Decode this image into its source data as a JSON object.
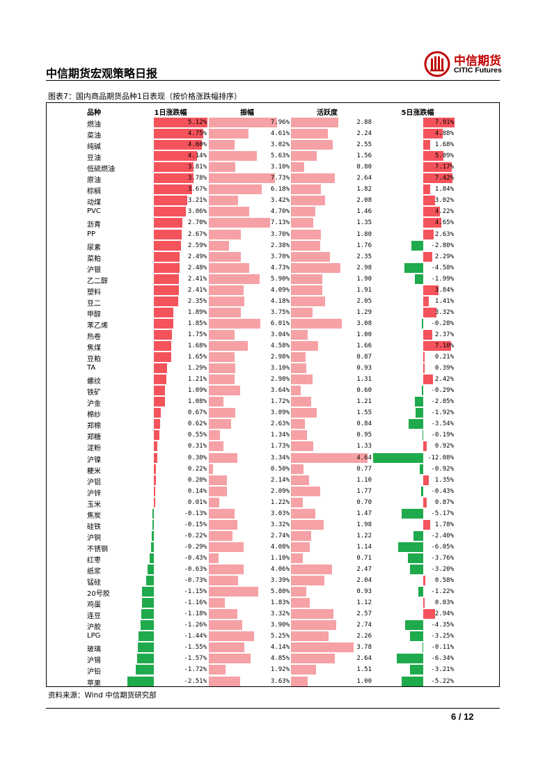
{
  "header": {
    "title": "中信期货宏观策略日报",
    "brand_cn": "中信期货",
    "brand_en": "CITIC Futures"
  },
  "figure_title": "图表7：国内商品期货品种1日表现（按价格涨跌幅排序）",
  "source": "资料来源：Wind 中信期货研究部",
  "page_number": "6 / 12",
  "colors": {
    "up": "#f4535b",
    "down": "#1faa4c",
    "light": "#f6a1a5",
    "brand": "#c00000"
  },
  "chart_data": {
    "type": "table",
    "columns": [
      "品种",
      "1日涨跌幅",
      "振幅",
      "活跃度",
      "5日涨跌幅"
    ],
    "rows": [
      {
        "name": "燃油",
        "d1": 5.12,
        "d1_t": "5.12%",
        "amp": 7.96,
        "amp_t": "7.96%",
        "act": 2.88,
        "act_t": "2.88",
        "d5": 7.91,
        "d5_t": "7.91%"
      },
      {
        "name": "菜油",
        "d1": 4.75,
        "d1_t": "4.75%",
        "amp": 4.61,
        "amp_t": "4.61%",
        "act": 2.24,
        "act_t": "2.24",
        "d5": 4.88,
        "d5_t": "4.88%"
      },
      {
        "name": "纯碱",
        "d1": 4.6,
        "d1_t": "4.60%",
        "amp": 3.02,
        "amp_t": "3.02%",
        "act": 2.55,
        "act_t": "2.55",
        "d5": 1.68,
        "d5_t": "1.68%"
      },
      {
        "name": "豆油",
        "d1": 4.14,
        "d1_t": "4.14%",
        "amp": 5.63,
        "amp_t": "5.63%",
        "act": 1.56,
        "act_t": "1.56",
        "d5": 5.09,
        "d5_t": "5.09%"
      },
      {
        "name": "低硫燃油",
        "d1": 3.81,
        "d1_t": "3.81%",
        "amp": 3.1,
        "amp_t": "3.10%",
        "act": 0.8,
        "act_t": "0.80",
        "d5": 7.17,
        "d5_t": "7.17%"
      },
      {
        "name": "原油",
        "d1": 3.78,
        "d1_t": "3.78%",
        "amp": 7.73,
        "amp_t": "7.73%",
        "act": 2.64,
        "act_t": "2.64",
        "d5": 7.42,
        "d5_t": "7.42%"
      },
      {
        "name": "棕榈",
        "d1": 3.67,
        "d1_t": "3.67%",
        "amp": 6.18,
        "amp_t": "6.18%",
        "act": 1.82,
        "act_t": "1.82",
        "d5": 1.84,
        "d5_t": "1.84%"
      },
      {
        "name": "动煤",
        "d1": 3.21,
        "d1_t": "3.21%",
        "amp": 3.42,
        "amp_t": "3.42%",
        "act": 2.08,
        "act_t": "2.08",
        "d5": 3.02,
        "d5_t": "3.02%"
      },
      {
        "name": "PVC",
        "d1": 3.06,
        "d1_t": "3.06%",
        "amp": 4.7,
        "amp_t": "4.70%",
        "act": 1.46,
        "act_t": "1.46",
        "d5": 4.22,
        "d5_t": "4.22%"
      },
      {
        "name": "沥青",
        "d1": 2.7,
        "d1_t": "2.70%",
        "amp": 7.13,
        "amp_t": "7.13%",
        "act": 1.35,
        "act_t": "1.35",
        "d5": 4.65,
        "d5_t": "4.65%"
      },
      {
        "name": "PP",
        "d1": 2.67,
        "d1_t": "2.67%",
        "amp": 3.7,
        "amp_t": "3.70%",
        "act": 1.8,
        "act_t": "1.80",
        "d5": 2.63,
        "d5_t": "2.63%"
      },
      {
        "name": "尿素",
        "d1": 2.59,
        "d1_t": "2.59%",
        "amp": 2.38,
        "amp_t": "2.38%",
        "act": 1.76,
        "act_t": "1.76",
        "d5": -2.8,
        "d5_t": "-2.80%"
      },
      {
        "name": "菜粕",
        "d1": 2.49,
        "d1_t": "2.49%",
        "amp": 3.7,
        "amp_t": "3.70%",
        "act": 2.35,
        "act_t": "2.35",
        "d5": 2.29,
        "d5_t": "2.29%"
      },
      {
        "name": "沪银",
        "d1": 2.48,
        "d1_t": "2.48%",
        "amp": 4.73,
        "amp_t": "4.73%",
        "act": 2.98,
        "act_t": "2.98",
        "d5": -4.58,
        "d5_t": "-4.58%"
      },
      {
        "name": "乙二醇",
        "d1": 2.41,
        "d1_t": "2.41%",
        "amp": 5.9,
        "amp_t": "5.90%",
        "act": 1.9,
        "act_t": "1.90",
        "d5": -1.99,
        "d5_t": "-1.99%"
      },
      {
        "name": "塑料",
        "d1": 2.41,
        "d1_t": "2.41%",
        "amp": 4.09,
        "amp_t": "4.09%",
        "act": 1.91,
        "act_t": "1.91",
        "d5": 3.84,
        "d5_t": "3.84%"
      },
      {
        "name": "豆二",
        "d1": 2.35,
        "d1_t": "2.35%",
        "amp": 4.18,
        "amp_t": "4.18%",
        "act": 2.05,
        "act_t": "2.05",
        "d5": 1.41,
        "d5_t": "1.41%"
      },
      {
        "name": "甲醇",
        "d1": 1.89,
        "d1_t": "1.89%",
        "amp": 3.75,
        "amp_t": "3.75%",
        "act": 1.29,
        "act_t": "1.29",
        "d5": 3.32,
        "d5_t": "3.32%"
      },
      {
        "name": "苯乙烯",
        "d1": 1.85,
        "d1_t": "1.85%",
        "amp": 6.01,
        "amp_t": "6.01%",
        "act": 3.08,
        "act_t": "3.08",
        "d5": -0.28,
        "d5_t": "-0.28%"
      },
      {
        "name": "热卷",
        "d1": 1.75,
        "d1_t": "1.75%",
        "amp": 3.04,
        "amp_t": "3.04%",
        "act": 1.0,
        "act_t": "1.00",
        "d5": 2.37,
        "d5_t": "2.37%"
      },
      {
        "name": "焦煤",
        "d1": 1.68,
        "d1_t": "1.68%",
        "amp": 4.58,
        "amp_t": "4.58%",
        "act": 1.66,
        "act_t": "1.66",
        "d5": 7.1,
        "d5_t": "7.10%"
      },
      {
        "name": "豆粕",
        "d1": 1.65,
        "d1_t": "1.65%",
        "amp": 2.98,
        "amp_t": "2.98%",
        "act": 0.87,
        "act_t": "0.87",
        "d5": 0.21,
        "d5_t": "0.21%"
      },
      {
        "name": "TA",
        "d1": 1.29,
        "d1_t": "1.29%",
        "amp": 3.1,
        "amp_t": "3.10%",
        "act": 0.93,
        "act_t": "0.93",
        "d5": 0.39,
        "d5_t": "0.39%"
      },
      {
        "name": "螺纹",
        "d1": 1.21,
        "d1_t": "1.21%",
        "amp": 2.98,
        "amp_t": "2.98%",
        "act": 1.31,
        "act_t": "1.31",
        "d5": 2.42,
        "d5_t": "2.42%"
      },
      {
        "name": "铁矿",
        "d1": 1.09,
        "d1_t": "1.09%",
        "amp": 3.64,
        "amp_t": "3.64%",
        "act": 0.6,
        "act_t": "0.60",
        "d5": -0.29,
        "d5_t": "-0.29%"
      },
      {
        "name": "沪金",
        "d1": 1.08,
        "d1_t": "1.08%",
        "amp": 1.72,
        "amp_t": "1.72%",
        "act": 1.21,
        "act_t": "1.21",
        "d5": -2.05,
        "d5_t": "-2.05%"
      },
      {
        "name": "棉纱",
        "d1": 0.67,
        "d1_t": "0.67%",
        "amp": 3.09,
        "amp_t": "3.09%",
        "act": 1.55,
        "act_t": "1.55",
        "d5": -1.92,
        "d5_t": "-1.92%"
      },
      {
        "name": "郑棉",
        "d1": 0.62,
        "d1_t": "0.62%",
        "amp": 2.63,
        "amp_t": "2.63%",
        "act": 0.84,
        "act_t": "0.84",
        "d5": -3.54,
        "d5_t": "-3.54%"
      },
      {
        "name": "郑糖",
        "d1": 0.55,
        "d1_t": "0.55%",
        "amp": 1.34,
        "amp_t": "1.34%",
        "act": 0.95,
        "act_t": "0.95",
        "d5": -0.19,
        "d5_t": "-0.19%"
      },
      {
        "name": "淀粉",
        "d1": 0.31,
        "d1_t": "0.31%",
        "amp": 1.73,
        "amp_t": "1.73%",
        "act": 1.33,
        "act_t": "1.33",
        "d5": 0.92,
        "d5_t": "0.92%"
      },
      {
        "name": "沪镍",
        "d1": 0.3,
        "d1_t": "0.30%",
        "amp": 3.34,
        "amp_t": "3.34%",
        "act": 4.64,
        "act_t": "4.64",
        "d5": -12.08,
        "d5_t": "-12.08%"
      },
      {
        "name": "粳米",
        "d1": 0.22,
        "d1_t": "0.22%",
        "amp": 0.5,
        "amp_t": "0.50%",
        "act": 0.77,
        "act_t": "0.77",
        "d5": -0.92,
        "d5_t": "-0.92%"
      },
      {
        "name": "沪铝",
        "d1": 0.2,
        "d1_t": "0.20%",
        "amp": 2.14,
        "amp_t": "2.14%",
        "act": 1.1,
        "act_t": "1.10",
        "d5": 1.35,
        "d5_t": "1.35%"
      },
      {
        "name": "沪锌",
        "d1": 0.14,
        "d1_t": "0.14%",
        "amp": 2.09,
        "amp_t": "2.09%",
        "act": 1.77,
        "act_t": "1.77",
        "d5": -0.43,
        "d5_t": "-0.43%"
      },
      {
        "name": "玉米",
        "d1": 0.01,
        "d1_t": "0.01%",
        "amp": 1.22,
        "amp_t": "1.22%",
        "act": 0.7,
        "act_t": "0.70",
        "d5": 0.87,
        "d5_t": "0.87%"
      },
      {
        "name": "焦炭",
        "d1": -0.13,
        "d1_t": "-0.13%",
        "amp": 3.03,
        "amp_t": "3.03%",
        "act": 1.47,
        "act_t": "1.47",
        "d5": -5.17,
        "d5_t": "-5.17%"
      },
      {
        "name": "硅铁",
        "d1": -0.15,
        "d1_t": "-0.15%",
        "amp": 3.32,
        "amp_t": "3.32%",
        "act": 1.98,
        "act_t": "1.98",
        "d5": 1.78,
        "d5_t": "1.78%"
      },
      {
        "name": "沪铜",
        "d1": -0.22,
        "d1_t": "-0.22%",
        "amp": 2.74,
        "amp_t": "2.74%",
        "act": 1.22,
        "act_t": "1.22",
        "d5": -2.4,
        "d5_t": "-2.40%"
      },
      {
        "name": "不锈钢",
        "d1": -0.29,
        "d1_t": "-0.29%",
        "amp": 4.08,
        "amp_t": "4.08%",
        "act": 1.14,
        "act_t": "1.14",
        "d5": -6.05,
        "d5_t": "-6.05%"
      },
      {
        "name": "红枣",
        "d1": -0.43,
        "d1_t": "-0.43%",
        "amp": 1.1,
        "amp_t": "1.10%",
        "act": 0.71,
        "act_t": "0.71",
        "d5": -3.76,
        "d5_t": "-3.76%"
      },
      {
        "name": "纸浆",
        "d1": -0.63,
        "d1_t": "-0.63%",
        "amp": 4.06,
        "amp_t": "4.06%",
        "act": 2.47,
        "act_t": "2.47",
        "d5": -3.2,
        "d5_t": "-3.20%"
      },
      {
        "name": "锰硅",
        "d1": -0.73,
        "d1_t": "-0.73%",
        "amp": 3.39,
        "amp_t": "3.39%",
        "act": 2.04,
        "act_t": "2.04",
        "d5": 0.58,
        "d5_t": "0.58%"
      },
      {
        "name": "20号胶",
        "d1": -1.15,
        "d1_t": "-1.15%",
        "amp": 5.8,
        "amp_t": "5.80%",
        "act": 0.93,
        "act_t": "0.93",
        "d5": -1.22,
        "d5_t": "-1.22%"
      },
      {
        "name": "鸡蛋",
        "d1": -1.16,
        "d1_t": "-1.16%",
        "amp": 1.83,
        "amp_t": "1.83%",
        "act": 1.12,
        "act_t": "1.12",
        "d5": 0.03,
        "d5_t": "0.03%"
      },
      {
        "name": "连豆",
        "d1": -1.18,
        "d1_t": "-1.18%",
        "amp": 3.32,
        "amp_t": "3.32%",
        "act": 2.57,
        "act_t": "2.57",
        "d5": 2.94,
        "d5_t": "2.94%"
      },
      {
        "name": "沪胶",
        "d1": -1.26,
        "d1_t": "-1.26%",
        "amp": 3.9,
        "amp_t": "3.90%",
        "act": 2.74,
        "act_t": "2.74",
        "d5": -4.35,
        "d5_t": "-4.35%"
      },
      {
        "name": "LPG",
        "d1": -1.44,
        "d1_t": "-1.44%",
        "amp": 5.25,
        "amp_t": "5.25%",
        "act": 2.26,
        "act_t": "2.26",
        "d5": -3.25,
        "d5_t": "-3.25%"
      },
      {
        "name": "玻璃",
        "d1": -1.55,
        "d1_t": "-1.55%",
        "amp": 4.14,
        "amp_t": "4.14%",
        "act": 3.78,
        "act_t": "3.78",
        "d5": -0.11,
        "d5_t": "-0.11%"
      },
      {
        "name": "沪锡",
        "d1": -1.57,
        "d1_t": "-1.57%",
        "amp": 4.85,
        "amp_t": "4.85%",
        "act": 2.64,
        "act_t": "2.64",
        "d5": -6.34,
        "d5_t": "-6.34%"
      },
      {
        "name": "沪铅",
        "d1": -1.72,
        "d1_t": "-1.72%",
        "amp": 1.92,
        "amp_t": "1.92%",
        "act": 1.51,
        "act_t": "1.51",
        "d5": -3.21,
        "d5_t": "-3.21%"
      },
      {
        "name": "苹果",
        "d1": -2.51,
        "d1_t": "-2.51%",
        "amp": 3.63,
        "amp_t": "3.63%",
        "act": 1.0,
        "act_t": "1.00",
        "d5": -5.22,
        "d5_t": "-5.22%"
      }
    ]
  }
}
